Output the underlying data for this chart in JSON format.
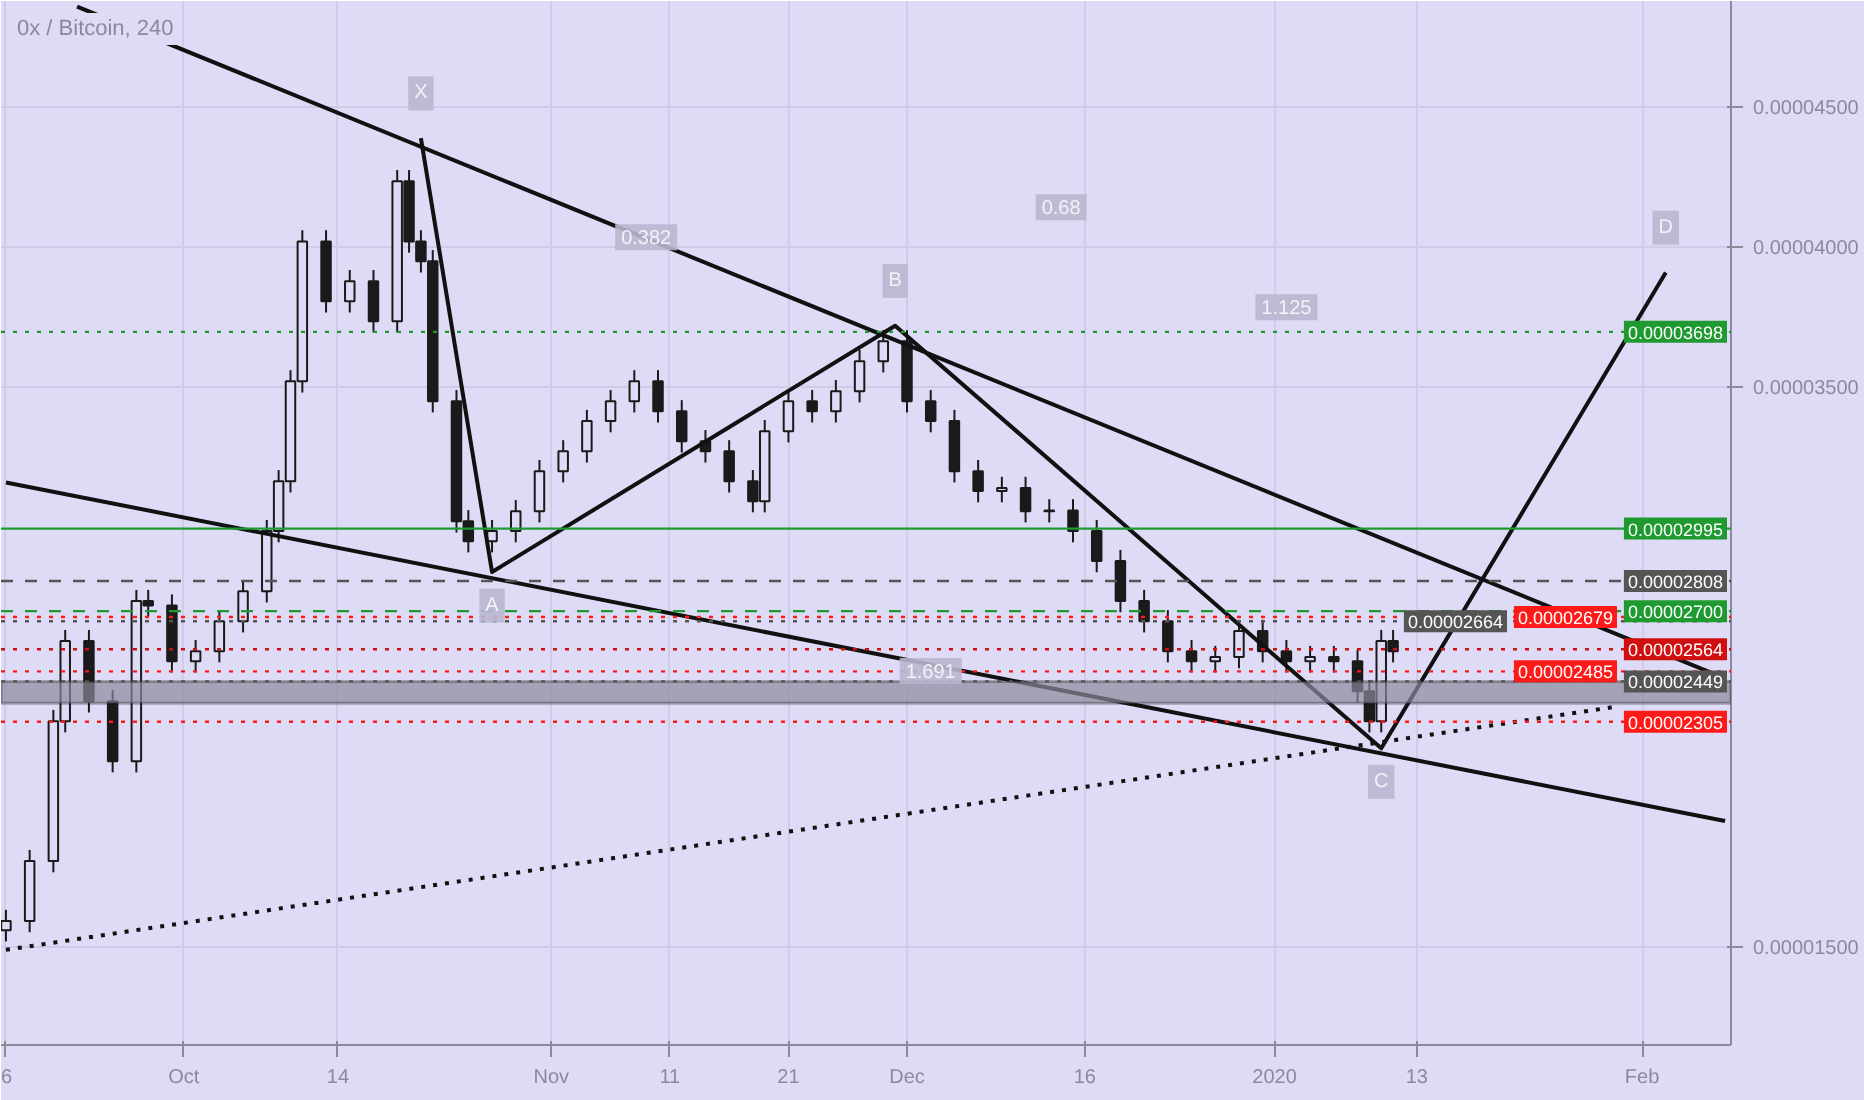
{
  "chart_data": {
    "type": "candlestick",
    "title": "0x / Bitcoin, 240",
    "x": [
      "2019-09-16",
      "2019-09-18",
      "2019-09-20",
      "2019-09-21",
      "2019-09-23",
      "2019-09-25",
      "2019-09-27",
      "2019-09-28",
      "2019-09-30",
      "2019-10-02",
      "2019-10-04",
      "2019-10-06",
      "2019-10-08",
      "2019-10-09",
      "2019-10-10",
      "2019-10-11",
      "2019-10-13",
      "2019-10-15",
      "2019-10-17",
      "2019-10-19",
      "2019-10-20",
      "2019-10-21",
      "2019-10-22",
      "2019-10-24",
      "2019-10-25",
      "2019-10-27",
      "2019-10-29",
      "2019-10-31",
      "2019-11-02",
      "2019-11-04",
      "2019-11-06",
      "2019-11-08",
      "2019-11-10",
      "2019-11-12",
      "2019-11-14",
      "2019-11-16",
      "2019-11-18",
      "2019-11-19",
      "2019-11-21",
      "2019-11-23",
      "2019-11-25",
      "2019-11-27",
      "2019-11-29",
      "2019-12-01",
      "2019-12-03",
      "2019-12-05",
      "2019-12-07",
      "2019-12-09",
      "2019-12-11",
      "2019-12-13",
      "2019-12-15",
      "2019-12-17",
      "2019-12-19",
      "2019-12-21",
      "2019-12-23",
      "2019-12-25",
      "2019-12-27",
      "2019-12-29",
      "2019-12-31",
      "2020-01-02",
      "2020-01-04",
      "2020-01-06",
      "2020-01-08",
      "2020-01-09",
      "2020-01-10",
      "2020-01-11"
    ],
    "ohlc": [
      [
        1.56e-05,
        1.633e-05,
        1.52e-05,
        1.593e-05
      ],
      [
        1.593e-05,
        1.847e-05,
        1.553e-05,
        1.807e-05
      ],
      [
        1.807e-05,
        2.347e-05,
        1.767e-05,
        2.307e-05
      ],
      [
        2.307e-05,
        2.633e-05,
        2.267e-05,
        2.593e-05
      ],
      [
        2.593e-05,
        2.633e-05,
        2.338e-05,
        2.378e-05
      ],
      [
        2.378e-05,
        2.418e-05,
        2.124e-05,
        2.164e-05
      ],
      [
        2.164e-05,
        2.776e-05,
        2.124e-05,
        2.736e-05
      ],
      [
        2.736e-05,
        2.776e-05,
        2.68e-05,
        2.72e-05
      ],
      [
        2.72e-05,
        2.76e-05,
        2.481e-05,
        2.521e-05
      ],
      [
        2.521e-05,
        2.597e-05,
        2.481e-05,
        2.557e-05
      ],
      [
        2.557e-05,
        2.704e-05,
        2.517e-05,
        2.664e-05
      ],
      [
        2.664e-05,
        2.811e-05,
        2.624e-05,
        2.771e-05
      ],
      [
        2.771e-05,
        3.026e-05,
        2.731e-05,
        2.986e-05
      ],
      [
        2.986e-05,
        3.204e-05,
        2.946e-05,
        3.164e-05
      ],
      [
        3.164e-05,
        3.561e-05,
        3.124e-05,
        3.521e-05
      ],
      [
        3.521e-05,
        4.061e-05,
        3.481e-05,
        4.021e-05
      ],
      [
        4.021e-05,
        4.061e-05,
        3.767e-05,
        3.807e-05
      ],
      [
        3.807e-05,
        3.919e-05,
        3.767e-05,
        3.879e-05
      ],
      [
        3.879e-05,
        3.919e-05,
        3.696e-05,
        3.736e-05
      ],
      [
        3.736e-05,
        4.276e-05,
        3.696e-05,
        4.236e-05
      ],
      [
        4.236e-05,
        4.276e-05,
        3.981e-05,
        4.021e-05
      ],
      [
        4.021e-05,
        4.061e-05,
        3.91e-05,
        3.95e-05
      ],
      [
        3.95e-05,
        3.99e-05,
        3.41e-05,
        3.45e-05
      ],
      [
        3.45e-05,
        3.49e-05,
        2.981e-05,
        3.021e-05
      ],
      [
        3.021e-05,
        3.061e-05,
        2.91e-05,
        2.95e-05
      ],
      [
        2.95e-05,
        3.026e-05,
        2.91e-05,
        2.986e-05
      ],
      [
        2.986e-05,
        3.097e-05,
        2.946e-05,
        3.057e-05
      ],
      [
        3.057e-05,
        3.24e-05,
        3.017e-05,
        3.2e-05
      ],
      [
        3.2e-05,
        3.311e-05,
        3.16e-05,
        3.271e-05
      ],
      [
        3.271e-05,
        3.419e-05,
        3.231e-05,
        3.379e-05
      ],
      [
        3.379e-05,
        3.49e-05,
        3.339e-05,
        3.45e-05
      ],
      [
        3.45e-05,
        3.561e-05,
        3.41e-05,
        3.521e-05
      ],
      [
        3.521e-05,
        3.561e-05,
        3.374e-05,
        3.414e-05
      ],
      [
        3.414e-05,
        3.454e-05,
        3.267e-05,
        3.307e-05
      ],
      [
        3.307e-05,
        3.347e-05,
        3.231e-05,
        3.271e-05
      ],
      [
        3.271e-05,
        3.311e-05,
        3.124e-05,
        3.164e-05
      ],
      [
        3.164e-05,
        3.204e-05,
        3.053e-05,
        3.093e-05
      ],
      [
        3.093e-05,
        3.383e-05,
        3.053e-05,
        3.343e-05
      ],
      [
        3.343e-05,
        3.49e-05,
        3.303e-05,
        3.45e-05
      ],
      [
        3.45e-05,
        3.49e-05,
        3.374e-05,
        3.414e-05
      ],
      [
        3.414e-05,
        3.526e-05,
        3.374e-05,
        3.486e-05
      ],
      [
        3.486e-05,
        3.633e-05,
        3.446e-05,
        3.593e-05
      ],
      [
        3.593e-05,
        3.704e-05,
        3.553e-05,
        3.664e-05
      ],
      [
        3.664e-05,
        3.704e-05,
        3.41e-05,
        3.45e-05
      ],
      [
        3.45e-05,
        3.49e-05,
        3.339e-05,
        3.379e-05
      ],
      [
        3.379e-05,
        3.419e-05,
        3.16e-05,
        3.2e-05
      ],
      [
        3.2e-05,
        3.24e-05,
        3.089e-05,
        3.129e-05
      ],
      [
        3.129e-05,
        3.18e-05,
        3.089e-05,
        3.14e-05
      ],
      [
        3.14e-05,
        3.18e-05,
        3.017e-05,
        3.057e-05
      ],
      [
        3.057e-05,
        3.1e-05,
        3.017e-05,
        3.06e-05
      ],
      [
        3.06e-05,
        3.1e-05,
        2.946e-05,
        2.986e-05
      ],
      [
        2.986e-05,
        3.026e-05,
        2.839e-05,
        2.879e-05
      ],
      [
        2.879e-05,
        2.919e-05,
        2.696e-05,
        2.736e-05
      ],
      [
        2.736e-05,
        2.776e-05,
        2.624e-05,
        2.664e-05
      ],
      [
        2.664e-05,
        2.704e-05,
        2.517e-05,
        2.557e-05
      ],
      [
        2.557e-05,
        2.597e-05,
        2.481e-05,
        2.521e-05
      ],
      [
        2.521e-05,
        2.576e-05,
        2.481e-05,
        2.536e-05
      ],
      [
        2.536e-05,
        2.669e-05,
        2.496e-05,
        2.629e-05
      ],
      [
        2.629e-05,
        2.669e-05,
        2.517e-05,
        2.557e-05
      ],
      [
        2.557e-05,
        2.597e-05,
        2.481e-05,
        2.521e-05
      ],
      [
        2.521e-05,
        2.576e-05,
        2.481e-05,
        2.536e-05
      ],
      [
        2.536e-05,
        2.576e-05,
        2.481e-05,
        2.521e-05
      ],
      [
        2.521e-05,
        2.561e-05,
        2.374e-05,
        2.414e-05
      ],
      [
        2.414e-05,
        2.454e-05,
        2.267e-05,
        2.307e-05
      ],
      [
        2.307e-05,
        2.633e-05,
        2.267e-05,
        2.593e-05
      ],
      [
        2.593e-05,
        2.633e-05,
        2.517e-05,
        2.557e-05
      ]
    ],
    "color": "#1a1a1a",
    "series": [
      {
        "type": "line",
        "color": "#111111",
        "line_style": "solid",
        "x": [
          "2019-09-22",
          "2020-02-08"
        ],
        "values": [
          4.86e-05,
          2.46e-05
        ]
      },
      {
        "type": "line",
        "color": "#111111",
        "line_style": "solid",
        "x": [
          "2019-09-16",
          "2020-02-08"
        ],
        "values": [
          3.16e-05,
          1.95e-05
        ]
      },
      {
        "type": "line",
        "color": "#111111",
        "line_style": "dotted",
        "x": [
          "2019-09-16",
          "2020-01-30"
        ],
        "values": [
          1.49e-05,
          2.36e-05
        ]
      },
      {
        "type": "line",
        "color": "#111111",
        "line_style": "solid",
        "x": [
          "2019-10-21",
          "2019-10-27",
          "2019-11-30",
          "2020-01-10",
          "2020-02-03"
        ],
        "values": [
          4.39e-05,
          2.84e-05,
          3.72e-05,
          2.21e-05,
          3.91e-05
        ]
      }
    ],
    "xlim": [
      "2019-09-15T14:00",
      "2020-02-08T12:00"
    ],
    "xticks": [
      {
        "value": "2019-09-16",
        "label": "6"
      },
      {
        "value": "2019-10-01",
        "label": "Oct"
      },
      {
        "value": "2019-10-14",
        "label": "14"
      },
      {
        "value": "2019-11-01",
        "label": "Nov"
      },
      {
        "value": "2019-11-11",
        "label": "11"
      },
      {
        "value": "2019-11-21",
        "label": "21"
      },
      {
        "value": "2019-12-01",
        "label": "Dec"
      },
      {
        "value": "2019-12-16",
        "label": "16"
      },
      {
        "value": "2020-01-01",
        "label": "2020"
      },
      {
        "value": "2020-01-13",
        "label": "13"
      },
      {
        "value": "2020-02-01",
        "label": "Feb"
      }
    ],
    "ylim": [
      1.15e-05,
      4.88e-05
    ],
    "yticks": [
      {
        "value": 4.5e-05,
        "label": "0.00004500"
      },
      {
        "value": 4e-05,
        "label": "0.00004000"
      },
      {
        "value": 3.5e-05,
        "label": "0.00003500"
      },
      {
        "value": 1.5e-05,
        "label": "0.00001500"
      }
    ],
    "grid": true,
    "ref_lines": [
      {
        "axis": "y",
        "value": 3.698e-05,
        "label": "0.00003698",
        "color": "#1f9a30",
        "line_style": "dotted"
      },
      {
        "axis": "y",
        "value": 2.995e-05,
        "label": "0.00002995",
        "color": "#1f9a30",
        "line_style": "solid"
      },
      {
        "axis": "y",
        "value": 2.808e-05,
        "label": "0.00002808",
        "color": "#555555",
        "line_style": "dashed"
      },
      {
        "axis": "y",
        "value": 2.7e-05,
        "label": "0.00002700",
        "color": "#1f9a30",
        "line_style": "dashed"
      },
      {
        "axis": "y",
        "value": 2.679e-05,
        "label": "0.00002679",
        "color": "#ff1a1a",
        "line_style": "dotted"
      },
      {
        "axis": "y",
        "value": 2.664e-05,
        "label": "0.00002664",
        "color": "#555555",
        "line_style": "dotted"
      },
      {
        "axis": "y",
        "value": 2.564e-05,
        "label": "0.00002564",
        "color": "#d01010",
        "line_style": "dotted"
      },
      {
        "axis": "y",
        "value": 2.485e-05,
        "label": "0.00002485",
        "color": "#ff1a1a",
        "line_style": "dotted"
      },
      {
        "axis": "y",
        "value": 2.449e-05,
        "label": "0.00002449",
        "color": "#555555",
        "line_style": "dotted"
      },
      {
        "axis": "y",
        "value": 2.305e-05,
        "label": "0.00002305",
        "color": "#ff1a1a",
        "line_style": "dotted"
      }
    ],
    "bands": [
      {
        "axis": "y",
        "from": 2.371e-05,
        "to": 2.449e-05,
        "color": "#8a8a9c"
      }
    ],
    "annotations": [
      {
        "text": "X",
        "x": "2019-10-21",
        "y": 4.55e-05
      },
      {
        "text": "A",
        "x": "2019-10-27",
        "y": 2.72e-05
      },
      {
        "text": "B",
        "x": "2019-11-30",
        "y": 3.88e-05
      },
      {
        "text": "C",
        "x": "2020-01-10",
        "y": 2.09e-05
      },
      {
        "text": "D",
        "x": "2020-02-03",
        "y": 4.07e-05
      },
      {
        "text": "0.382",
        "x": "2019-11-09",
        "y": 4.036e-05
      },
      {
        "text": "0.68",
        "x": "2019-12-14",
        "y": 4.143e-05
      },
      {
        "text": "1.125",
        "x": "2020-01-02",
        "y": 3.786e-05
      },
      {
        "text": "1.691",
        "x": "2019-12-03",
        "y": 2.486e-05
      }
    ]
  }
}
